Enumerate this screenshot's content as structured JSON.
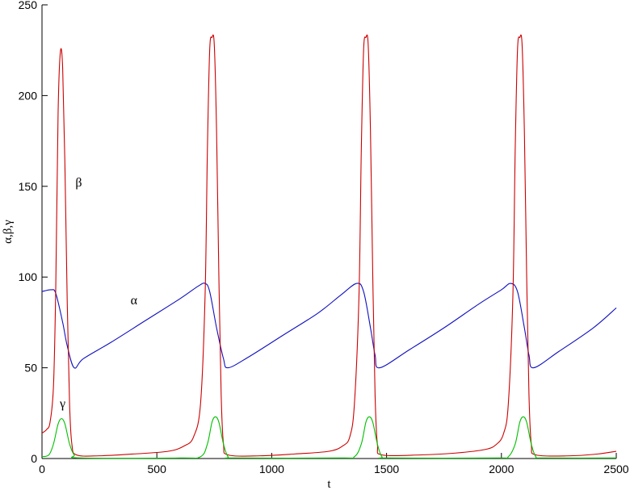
{
  "chart_data": {
    "type": "line",
    "title": "",
    "xlabel": "t",
    "ylabel": "α,β,γ",
    "xlim": [
      0,
      2500
    ],
    "ylim": [
      0,
      250
    ],
    "xticks": [
      "0",
      "500",
      "1000",
      "1500",
      "2000",
      "2500"
    ],
    "yticks": [
      "0",
      "50",
      "100",
      "150",
      "200",
      "250"
    ],
    "grid": false,
    "legend": "none",
    "series": [
      {
        "name": "α",
        "color": "#1010c0",
        "label_at": [
          400,
          85
        ],
        "points": [
          [
            0,
            92
          ],
          [
            40,
            93
          ],
          [
            60,
            91
          ],
          [
            90,
            75
          ],
          [
            110,
            62
          ],
          [
            140,
            50
          ],
          [
            180,
            55
          ],
          [
            300,
            64
          ],
          [
            450,
            76
          ],
          [
            600,
            88
          ],
          [
            680,
            95
          ],
          [
            710,
            96.5
          ],
          [
            730,
            92
          ],
          [
            760,
            72
          ],
          [
            790,
            55
          ],
          [
            810,
            50
          ],
          [
            900,
            56
          ],
          [
            1050,
            68
          ],
          [
            1200,
            80
          ],
          [
            1300,
            90
          ],
          [
            1370,
            96.5
          ],
          [
            1400,
            92
          ],
          [
            1430,
            72
          ],
          [
            1450,
            57
          ],
          [
            1470,
            50
          ],
          [
            1600,
            60
          ],
          [
            1750,
            72
          ],
          [
            1900,
            85
          ],
          [
            2000,
            93
          ],
          [
            2040,
            96.5
          ],
          [
            2070,
            92
          ],
          [
            2100,
            72
          ],
          [
            2120,
            57
          ],
          [
            2140,
            50
          ],
          [
            2250,
            59
          ],
          [
            2400,
            72
          ],
          [
            2500,
            83
          ]
        ]
      },
      {
        "name": "β",
        "color": "#cc0000",
        "label_at": [
          160,
          150
        ],
        "points": [
          [
            0,
            14
          ],
          [
            20,
            16
          ],
          [
            35,
            20
          ],
          [
            50,
            40
          ],
          [
            60,
            95
          ],
          [
            70,
            190
          ],
          [
            80,
            224
          ],
          [
            90,
            215
          ],
          [
            100,
            160
          ],
          [
            110,
            85
          ],
          [
            120,
            30
          ],
          [
            130,
            8
          ],
          [
            150,
            2
          ],
          [
            250,
            1.5
          ],
          [
            400,
            2.5
          ],
          [
            550,
            4
          ],
          [
            620,
            7
          ],
          [
            660,
            12
          ],
          [
            690,
            30
          ],
          [
            710,
            90
          ],
          [
            720,
            170
          ],
          [
            730,
            225
          ],
          [
            740,
            232
          ],
          [
            750,
            228
          ],
          [
            760,
            180
          ],
          [
            770,
            100
          ],
          [
            780,
            35
          ],
          [
            790,
            8
          ],
          [
            810,
            2
          ],
          [
            950,
            1.5
          ],
          [
            1100,
            2.5
          ],
          [
            1250,
            4
          ],
          [
            1310,
            7
          ],
          [
            1340,
            12
          ],
          [
            1360,
            30
          ],
          [
            1380,
            90
          ],
          [
            1390,
            170
          ],
          [
            1400,
            225
          ],
          [
            1410,
            232
          ],
          [
            1420,
            228
          ],
          [
            1430,
            180
          ],
          [
            1440,
            100
          ],
          [
            1450,
            35
          ],
          [
            1460,
            8
          ],
          [
            1480,
            2
          ],
          [
            1650,
            2
          ],
          [
            1800,
            3
          ],
          [
            1930,
            5
          ],
          [
            1980,
            8
          ],
          [
            2010,
            14
          ],
          [
            2030,
            30
          ],
          [
            2050,
            90
          ],
          [
            2060,
            170
          ],
          [
            2070,
            225
          ],
          [
            2080,
            232
          ],
          [
            2090,
            228
          ],
          [
            2100,
            180
          ],
          [
            2110,
            100
          ],
          [
            2120,
            35
          ],
          [
            2130,
            8
          ],
          [
            2150,
            2
          ],
          [
            2300,
            1.5
          ],
          [
            2420,
            2.5
          ],
          [
            2500,
            4
          ]
        ]
      },
      {
        "name": "γ",
        "color": "#00c000",
        "label_at": [
          90,
          28
        ],
        "points": [
          [
            0,
            1
          ],
          [
            30,
            2
          ],
          [
            50,
            8
          ],
          [
            70,
            19
          ],
          [
            85,
            22
          ],
          [
            100,
            19
          ],
          [
            120,
            8
          ],
          [
            140,
            2
          ],
          [
            170,
            0.3
          ],
          [
            600,
            0.3
          ],
          [
            690,
            1
          ],
          [
            720,
            8
          ],
          [
            740,
            20
          ],
          [
            755,
            23
          ],
          [
            770,
            20
          ],
          [
            790,
            8
          ],
          [
            810,
            1
          ],
          [
            840,
            0.3
          ],
          [
            1300,
            0.3
          ],
          [
            1360,
            1
          ],
          [
            1390,
            8
          ],
          [
            1410,
            20
          ],
          [
            1425,
            23
          ],
          [
            1440,
            20
          ],
          [
            1460,
            8
          ],
          [
            1480,
            1
          ],
          [
            1510,
            0.3
          ],
          [
            1980,
            0.3
          ],
          [
            2030,
            1
          ],
          [
            2060,
            8
          ],
          [
            2080,
            20
          ],
          [
            2095,
            23
          ],
          [
            2110,
            20
          ],
          [
            2130,
            8
          ],
          [
            2150,
            1
          ],
          [
            2180,
            0.3
          ],
          [
            2500,
            0.3
          ]
        ]
      }
    ]
  }
}
